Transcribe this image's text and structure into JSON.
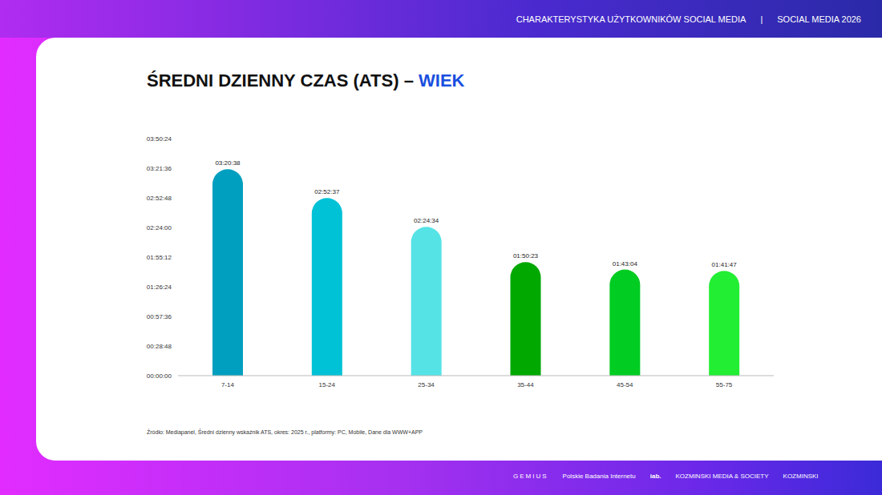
{
  "chart_data": {
    "type": "bar",
    "title": "ŚREDNI DZIENNY CZAS (ATS) – WIEK",
    "categories": [
      "7-14",
      "15-24",
      "25-34",
      "35-44",
      "45-54",
      "55-75"
    ],
    "values": [
      12038,
      10357,
      8674,
      6623,
      6184,
      6107
    ],
    "value_labels": [
      "03:20:38",
      "02:52:37",
      "02:24:34",
      "01:50:23",
      "01:43:04",
      "01:41:47"
    ],
    "colors": [
      "#009fbf",
      "#00c2d6",
      "#55e3e6",
      "#00a800",
      "#00cc22",
      "#22ee33"
    ],
    "ylim": [
      0,
      13824
    ],
    "yticks": [
      {
        "value": 0,
        "label": "00:00:00"
      },
      {
        "value": 1728,
        "label": "00:28:48"
      },
      {
        "value": 3456,
        "label": "00:57:36"
      },
      {
        "value": 5184,
        "label": "01:26:24"
      },
      {
        "value": 6912,
        "label": "01:55:12"
      },
      {
        "value": 8640,
        "label": "02:24:00"
      },
      {
        "value": 10368,
        "label": "02:52:48"
      },
      {
        "value": 12096,
        "label": "03:21:36"
      },
      {
        "value": 13824,
        "label": "03:50:24"
      }
    ],
    "grid": false,
    "data_labels": true
  },
  "slide": {
    "header_left": "CHARAKTERYSTYKA UŻYTKOWNIKÓW SOCIAL MEDIA",
    "header_separator": "|",
    "header_right": "SOCIAL MEDIA 2026",
    "source": "Źródło: Mediapanel, Średni dzienny wskaźnik ATS, okres: 2025 r., platformy: PC, Mobile, Dane dla WWW+APP",
    "logos": [
      "GEMIUS",
      "Polskie Badania Internetu",
      "iab.",
      "KOZMINSKI MEDIA & SOCIETY",
      "KOZMINSKI"
    ]
  }
}
